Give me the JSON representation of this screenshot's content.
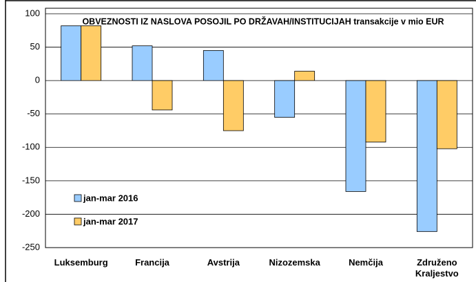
{
  "chart_data": {
    "type": "bar",
    "title": "OBVEZNOSTI IZ NASLOVA POSOJIL PO DRŽAVAH/INSTITUCIJAH transakcije v mio EUR",
    "categories": [
      "Luksemburg",
      "Francija",
      "Avstrija",
      "Nizozemska",
      "Nemčija",
      "Združeno Kraljestvo"
    ],
    "series": [
      {
        "name": "jan-mar 2016",
        "color": "#99ccff",
        "values": [
          82,
          52,
          45,
          -55,
          -166,
          -226
        ]
      },
      {
        "name": "jan-mar 2017",
        "color": "#ffcc66",
        "values": [
          82,
          -44,
          -75,
          14,
          -92,
          -102
        ]
      }
    ],
    "ylim": [
      -250,
      100
    ],
    "yticks": [
      -250,
      -200,
      -150,
      -100,
      -50,
      0,
      50,
      100
    ],
    "grid": true,
    "legend": "lower left"
  }
}
